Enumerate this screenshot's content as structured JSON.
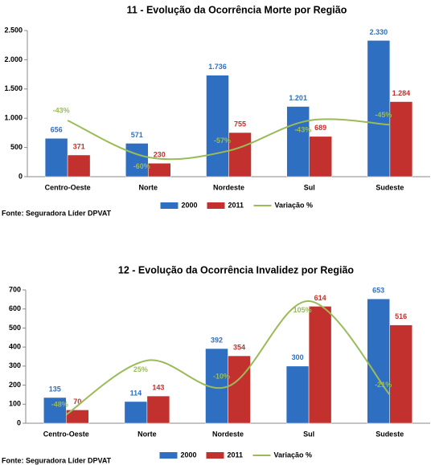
{
  "chart_data": [
    {
      "type": "bar",
      "title": "11 - Evolução da Ocorrência Morte por Região",
      "categories": [
        "Centro-Oeste",
        "Norte",
        "Nordeste",
        "Sul",
        "Sudeste"
      ],
      "series": [
        {
          "name": "2000",
          "color": "#2f6fc2",
          "values": [
            656,
            571,
            1736,
            1201,
            2330
          ],
          "value_labels": [
            "656",
            "571",
            "1.736",
            "1.201",
            "2.330"
          ]
        },
        {
          "name": "2011",
          "color": "#c2312d",
          "values": [
            371,
            230,
            755,
            689,
            1284
          ],
          "value_labels": [
            "371",
            "230",
            "755",
            "689",
            "1.284"
          ]
        },
        {
          "name": "Variação %",
          "type": "line",
          "axis": "y2",
          "color": "#9bbb59",
          "values": [
            -43,
            -60,
            -57,
            -43,
            -45
          ],
          "value_labels": [
            "-43%",
            "-60%",
            "-57%",
            "-43%",
            "-45%"
          ]
        }
      ],
      "ylim": [
        0,
        2500
      ],
      "yticks": [
        0,
        500,
        {
          "value": 1000,
          "label": "1.000"
        },
        {
          "value": 1500,
          "label": "1.500"
        },
        {
          "value": 2000,
          "label": "2.000"
        },
        {
          "value": 2500,
          "label": "2.500"
        }
      ],
      "y2lim": [
        -69,
        -1.4
      ],
      "legend": "bottom",
      "source": "Fonte: Seguradora Líder DPVAT"
    },
    {
      "type": "bar",
      "title": "12 - Evolução da Ocorrência Invalidez por Região",
      "categories": [
        "Centro-Oeste",
        "Norte",
        "Nordeste",
        "Sul",
        "Sudeste"
      ],
      "series": [
        {
          "name": "2000",
          "color": "#2f6fc2",
          "values": [
            135,
            114,
            392,
            300,
            653
          ]
        },
        {
          "name": "2011",
          "color": "#c2312d",
          "values": [
            70,
            143,
            354,
            614,
            516
          ]
        },
        {
          "name": "Variação %",
          "type": "line",
          "axis": "y2",
          "color": "#9bbb59",
          "values": [
            -48,
            25,
            -10,
            105,
            -21
          ],
          "value_labels": [
            "-48%",
            "25%",
            "-10%",
            "105%",
            "-21%"
          ]
        }
      ],
      "ylim": [
        0,
        700
      ],
      "yticks": [
        0,
        100,
        200,
        300,
        400,
        500,
        600,
        700
      ],
      "y2lim": [
        -59.5,
        120
      ],
      "legend": "bottom",
      "source": "Fonte: Seguradora Líder DPVAT"
    }
  ]
}
